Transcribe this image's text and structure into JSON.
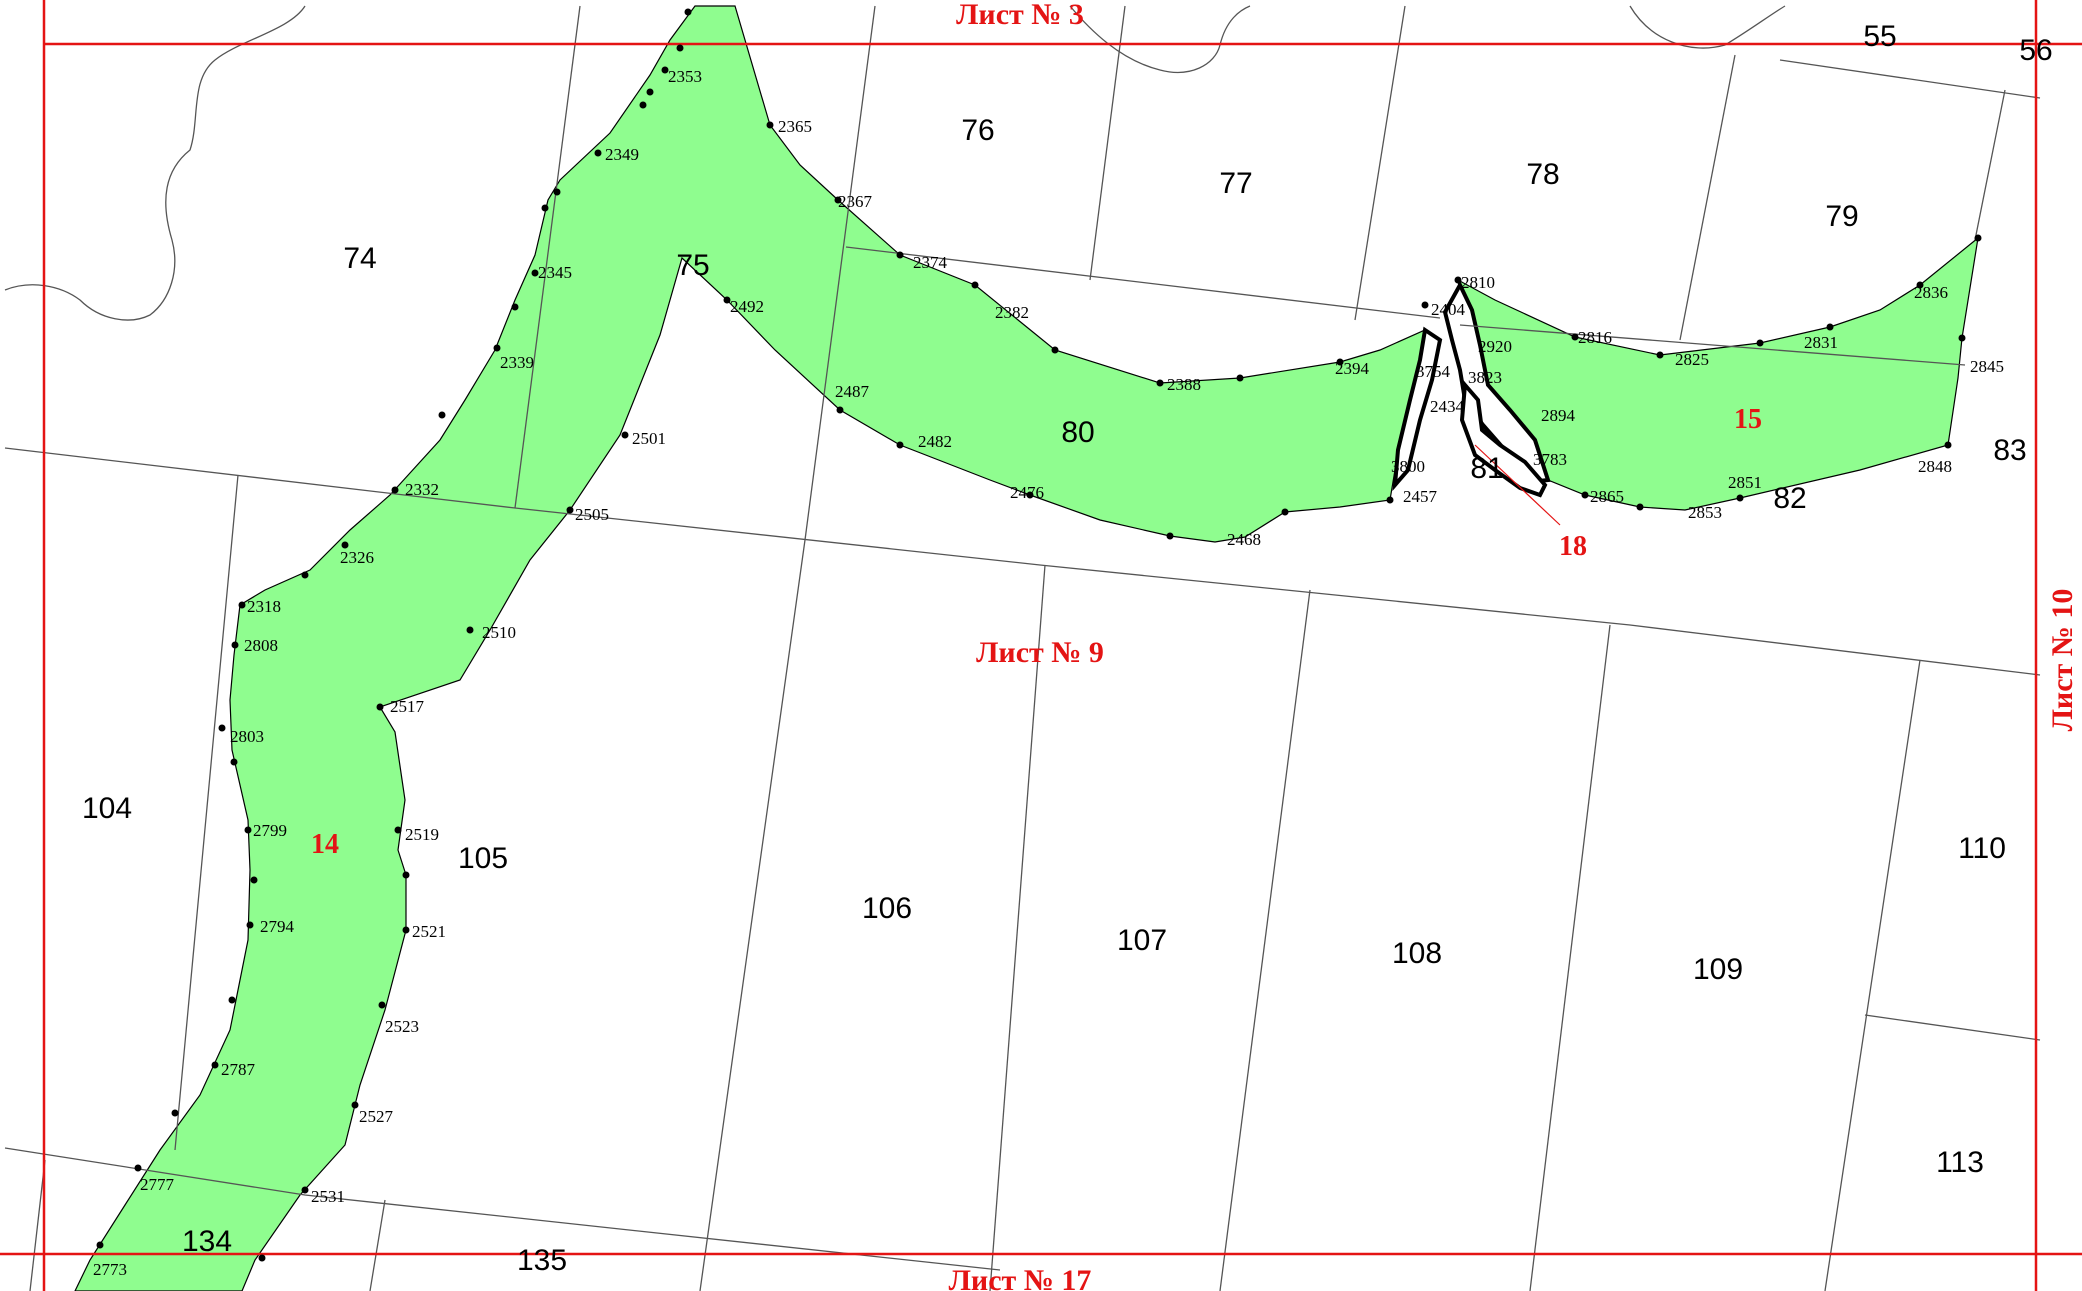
{
  "colors": {
    "zone_fill": "#8ffd8f",
    "sheet_border": "#e41414",
    "parcel_line": "#555555",
    "label_red": "#e41414",
    "point": "#000000"
  },
  "sheets": {
    "current": "Лист № 9",
    "top": "Лист № 3",
    "right": "Лист № 10",
    "bottom": "Лист № 17"
  },
  "zones": {
    "left": "14",
    "right": "15",
    "small": "18"
  },
  "parcels": {
    "p55": "55",
    "p56": "56",
    "p74": "74",
    "p75": "75",
    "p76": "76",
    "p77": "77",
    "p78": "78",
    "p79": "79",
    "p80": "80",
    "p81": "81",
    "p82": "82",
    "p83": "83",
    "p104": "104",
    "p105": "105",
    "p106": "106",
    "p107": "107",
    "p108": "108",
    "p109": "109",
    "p110": "110",
    "p113": "113",
    "p134": "134",
    "p135": "135"
  },
  "points": {
    "n2353": "2353",
    "n2365": "2365",
    "n2349": "2349",
    "n2367": "2367",
    "n2374": "2374",
    "n2345": "2345",
    "n2492": "2492",
    "n2382": "2382",
    "n2339": "2339",
    "n2388": "2388",
    "n2394": "2394",
    "n2404": "2404",
    "n2810": "2810",
    "n2920": "2920",
    "n3754": "3754",
    "n3823": "3823",
    "n2434": "2434",
    "n2894": "2894",
    "n2816": "2816",
    "n2825": "2825",
    "n2831": "2831",
    "n2836": "2836",
    "n2845": "2845",
    "n2501": "2501",
    "n2487": "2487",
    "n2482": "2482",
    "n2476": "2476",
    "n2468": "2468",
    "n3800": "3800",
    "n2457": "2457",
    "n3783": "3783",
    "n2865": "2865",
    "n2851": "2851",
    "n2853": "2853",
    "n2848": "2848",
    "n2332": "2332",
    "n2505": "2505",
    "n2326": "2326",
    "n2318": "2318",
    "n2808": "2808",
    "n2510": "2510",
    "n2517": "2517",
    "n2803": "2803",
    "n2799": "2799",
    "n2519": "2519",
    "n2794": "2794",
    "n2521": "2521",
    "n2523": "2523",
    "n2787": "2787",
    "n2527": "2527",
    "n2777": "2777",
    "n2531": "2531",
    "n2773": "2773"
  }
}
